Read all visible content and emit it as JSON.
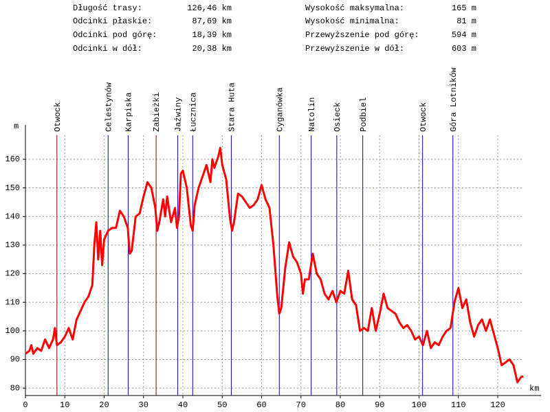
{
  "stats": {
    "left": [
      {
        "label": "Długość trasy:",
        "value": "126,46 km"
      },
      {
        "label": "Odcinki płaskie:",
        "value": "87,69 km"
      },
      {
        "label": "Odcinki pod górę:",
        "value": "18,39 km"
      },
      {
        "label": "Odcinki w dół:",
        "value": "20,38 km"
      }
    ],
    "right": [
      {
        "label": "Wysokość maksymalna:",
        "value": "165 m"
      },
      {
        "label": "Wysokość minimalna:",
        "value": "81 m"
      },
      {
        "label": "Przewyższenie pod górę:",
        "value": "594 m"
      },
      {
        "label": "Przewyższenie w dół:",
        "value": "603 m"
      }
    ]
  },
  "chart_data": {
    "type": "line",
    "x_label": "km",
    "y_label": "m",
    "color": "#ff0000",
    "grid": true,
    "xlim": [
      0,
      131
    ],
    "ylim": [
      77.4,
      172
    ],
    "xticks": [
      0,
      10,
      20,
      30,
      40,
      50,
      60,
      70,
      80,
      90,
      100,
      110,
      120
    ],
    "yticks": [
      80,
      90,
      100,
      110,
      120,
      130,
      140,
      150,
      160
    ],
    "x": [
      0,
      1,
      1.5,
      2,
      3,
      4,
      5,
      6,
      7,
      7.5,
      8,
      9,
      10,
      11,
      12,
      13,
      14,
      15,
      16,
      17,
      17.5,
      18,
      18.5,
      19,
      19.5,
      20,
      21,
      22,
      23,
      24,
      25,
      26,
      26.5,
      27,
      28,
      29,
      30,
      31,
      32,
      33,
      33.5,
      34,
      35,
      35.5,
      36,
      37,
      38,
      38.5,
      39,
      39.5,
      40,
      41,
      42,
      42.5,
      43,
      44,
      45,
      46,
      47,
      47.5,
      48,
      49,
      49.5,
      50,
      51,
      52,
      52.5,
      53,
      54,
      55,
      56,
      57,
      58,
      59,
      60,
      61,
      62,
      63,
      64,
      64.5,
      65,
      66,
      67,
      68,
      69,
      70,
      70.5,
      71,
      72,
      73,
      74,
      75,
      76,
      77,
      78,
      79,
      80,
      81,
      82,
      83,
      84,
      85,
      86,
      87,
      88,
      89,
      90,
      91,
      92,
      93,
      94,
      95,
      96,
      97,
      98,
      99,
      100,
      101,
      102,
      103,
      104,
      105,
      106,
      107,
      108,
      109,
      110,
      111,
      112,
      113,
      114,
      115,
      116,
      117,
      118,
      119,
      120,
      121,
      122,
      123,
      124,
      125,
      126,
      126.5
    ],
    "values": [
      92,
      93,
      95,
      92,
      94,
      93,
      97,
      94,
      97,
      101,
      95,
      96,
      98,
      101,
      97,
      104,
      107,
      110,
      112,
      116,
      130,
      138,
      125,
      135,
      123,
      132,
      135,
      136,
      136,
      142,
      140,
      136,
      127,
      128,
      140,
      141,
      147,
      152,
      150,
      143,
      135,
      138,
      146,
      140,
      147,
      138,
      143,
      136,
      140,
      155,
      156,
      150,
      137,
      135,
      144,
      150,
      154,
      158,
      152,
      160,
      157,
      161,
      164,
      158,
      153,
      139,
      135,
      138,
      148,
      147,
      145,
      143,
      144,
      146,
      151,
      146,
      143,
      130,
      112,
      106,
      108,
      122,
      131,
      126,
      124,
      120,
      113,
      118,
      118,
      127,
      120,
      118,
      113,
      111,
      114,
      110,
      114,
      113,
      121,
      111,
      109,
      100,
      101,
      100,
      108,
      100,
      106,
      113,
      108,
      107,
      106,
      103,
      101,
      102,
      100,
      97,
      98,
      95,
      100,
      94,
      96,
      95,
      98,
      100,
      101,
      110,
      115,
      108,
      111,
      103,
      98,
      102,
      104,
      100,
      104,
      99,
      94,
      88,
      89,
      90,
      88,
      82,
      84,
      84
    ],
    "markers": [
      {
        "label": "Otwock",
        "x": 8.0,
        "color": "#7f0000"
      },
      {
        "label": "Celestynów",
        "x": 21.0,
        "color": "#0000cc"
      },
      {
        "label": "Karpiska",
        "x": 26.1,
        "color": "#0000cc"
      },
      {
        "label": "Zabieżki",
        "x": 33.2,
        "color": "#7f0000"
      },
      {
        "label": "Jaźwiny",
        "x": 38.7,
        "color": "#0000cc"
      },
      {
        "label": "Łucznica",
        "x": 42.5,
        "color": "#0000cc"
      },
      {
        "label": "Stara Huta",
        "x": 52.3,
        "color": "#0000cc"
      },
      {
        "label": "Cyganówka",
        "x": 64.5,
        "color": "#0000cc"
      },
      {
        "label": "Natolin",
        "x": 72.6,
        "color": "#0000cc"
      },
      {
        "label": "Osieck",
        "x": 79.1,
        "color": "#0000cc"
      },
      {
        "label": "Podbiel",
        "x": 85.7,
        "color": "#0000cc"
      },
      {
        "label": "Otwock",
        "x": 100.9,
        "color": "#0000cc"
      },
      {
        "label": "Góra Lotników",
        "x": 108.6,
        "color": "#0000cc"
      }
    ]
  }
}
